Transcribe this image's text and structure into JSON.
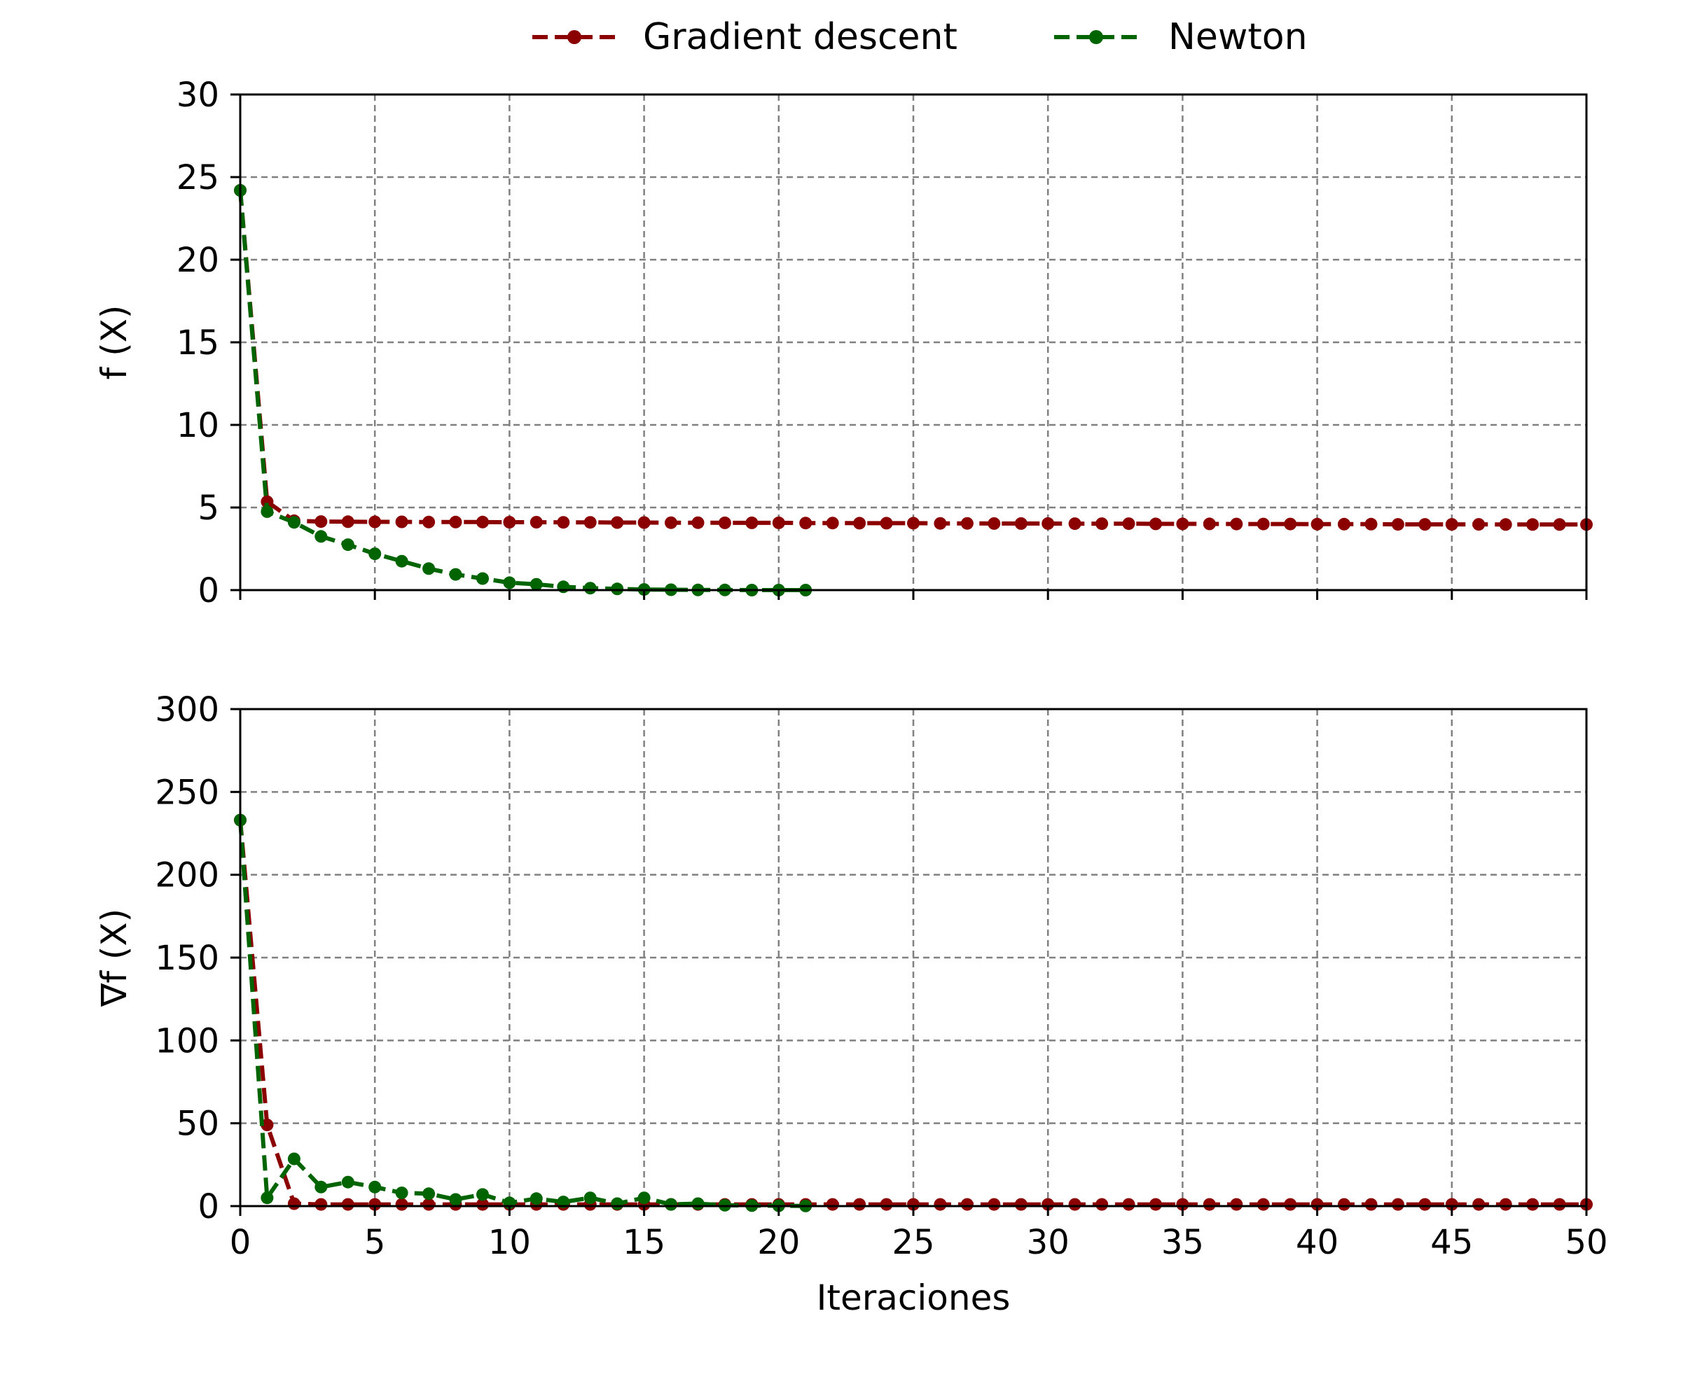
{
  "legend": {
    "placement": "top-center",
    "entries": [
      {
        "label": "Gradient descent",
        "color": "#8b0000"
      },
      {
        "label": "Newton",
        "color": "#006400"
      }
    ]
  },
  "chart_data": [
    {
      "type": "line",
      "ylabel": "f (X)",
      "xlabel": "",
      "xlim": [
        0,
        50
      ],
      "ylim": [
        0,
        30
      ],
      "grid": true,
      "line_style": "dashed with circle markers",
      "x_ticks": [
        "0",
        "5",
        "10",
        "15",
        "20",
        "25",
        "30",
        "35",
        "40",
        "45",
        "50"
      ],
      "y_ticks": [
        "0",
        "5",
        "10",
        "15",
        "20",
        "25",
        "30"
      ],
      "series": [
        {
          "name": "Gradient descent",
          "color": "#8b0000",
          "x": [
            0,
            1,
            2,
            3,
            4,
            5,
            6,
            7,
            8,
            9,
            10,
            11,
            12,
            13,
            14,
            15,
            16,
            17,
            18,
            19,
            20,
            21,
            22,
            23,
            24,
            25,
            26,
            27,
            28,
            29,
            30,
            31,
            32,
            33,
            34,
            35,
            36,
            37,
            38,
            39,
            40,
            41,
            42,
            43,
            44,
            45,
            46,
            47,
            48,
            49,
            50
          ],
          "y": [
            24.2,
            5.35,
            4.2,
            4.15,
            4.14,
            4.13,
            4.13,
            4.12,
            4.12,
            4.12,
            4.11,
            4.11,
            4.1,
            4.1,
            4.09,
            4.09,
            4.08,
            4.08,
            4.07,
            4.07,
            4.07,
            4.06,
            4.06,
            4.05,
            4.05,
            4.05,
            4.04,
            4.04,
            4.03,
            4.03,
            4.03,
            4.02,
            4.02,
            4.02,
            4.01,
            4.01,
            4.01,
            4.0,
            4.0,
            4.0,
            3.99,
            3.99,
            3.99,
            3.98,
            3.98,
            3.98,
            3.98,
            3.97,
            3.97,
            3.97,
            3.97
          ]
        },
        {
          "name": "Newton",
          "color": "#006400",
          "x": [
            0,
            1,
            2,
            3,
            4,
            5,
            6,
            7,
            8,
            9,
            10,
            11,
            12,
            13,
            14,
            15,
            16,
            17,
            18,
            19,
            20,
            21
          ],
          "y": [
            24.2,
            4.75,
            4.1,
            3.25,
            2.75,
            2.2,
            1.75,
            1.3,
            0.95,
            0.7,
            0.45,
            0.35,
            0.2,
            0.12,
            0.07,
            0.04,
            0.02,
            0.01,
            0.01,
            0.0,
            0.0,
            0.0
          ]
        }
      ]
    },
    {
      "type": "line",
      "ylabel": "∇f (X)",
      "xlabel": "Iteraciones",
      "xlim": [
        0,
        50
      ],
      "ylim": [
        0,
        300
      ],
      "grid": true,
      "line_style": "dashed with circle markers",
      "x_ticks": [
        "0",
        "5",
        "10",
        "15",
        "20",
        "25",
        "30",
        "35",
        "40",
        "45",
        "50"
      ],
      "y_ticks": [
        "0",
        "50",
        "100",
        "150",
        "200",
        "250",
        "300"
      ],
      "series": [
        {
          "name": "Gradient descent",
          "color": "#8b0000",
          "x": [
            0,
            1,
            2,
            3,
            4,
            5,
            6,
            7,
            8,
            9,
            10,
            11,
            12,
            13,
            14,
            15,
            16,
            17,
            18,
            19,
            20,
            21,
            22,
            23,
            24,
            25,
            26,
            27,
            28,
            29,
            30,
            31,
            32,
            33,
            34,
            35,
            36,
            37,
            38,
            39,
            40,
            41,
            42,
            43,
            44,
            45,
            46,
            47,
            48,
            49,
            50
          ],
          "y": [
            233,
            49,
            1.5,
            1,
            1,
            1,
            1,
            1,
            1,
            1,
            1,
            1,
            1,
            1,
            1,
            1,
            1,
            1,
            1,
            1,
            1,
            1,
            1,
            1,
            1,
            1,
            1,
            1,
            1,
            1,
            1,
            1,
            1,
            1,
            1,
            1,
            1,
            1,
            1,
            1,
            1,
            1,
            1,
            1,
            1,
            1,
            1,
            1,
            1,
            1,
            1
          ]
        },
        {
          "name": "Newton",
          "color": "#006400",
          "x": [
            0,
            1,
            2,
            3,
            4,
            5,
            6,
            7,
            8,
            9,
            10,
            11,
            12,
            13,
            14,
            15,
            16,
            17,
            18,
            19,
            20,
            21
          ],
          "y": [
            233,
            5,
            28.5,
            11.5,
            14.5,
            11.5,
            8,
            7.5,
            4,
            7,
            2,
            4.5,
            2.5,
            5,
            1.5,
            5,
            1,
            1.5,
            0.5,
            0.3,
            0.2,
            0.1
          ]
        }
      ]
    }
  ]
}
